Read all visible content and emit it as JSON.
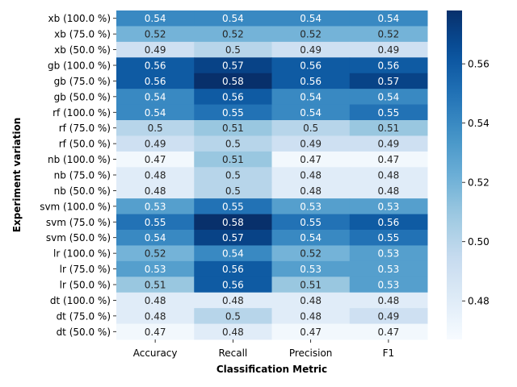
{
  "chart_data": {
    "type": "heatmap",
    "xlabel": "Classification Metric",
    "ylabel": "Experiment variation",
    "columns": [
      "Accuracy",
      "Recall",
      "Precision",
      "F1"
    ],
    "rows": [
      "xb (100.0 %)",
      "xb (75.0 %)",
      "xb (50.0 %)",
      "gb (100.0 %)",
      "gb (75.0 %)",
      "gb (50.0 %)",
      "rf (100.0 %)",
      "rf (75.0 %)",
      "rf (50.0 %)",
      "nb (100.0 %)",
      "nb (75.0 %)",
      "nb (50.0 %)",
      "svm (100.0 %)",
      "svm (75.0 %)",
      "svm (50.0 %)",
      "lr (100.0 %)",
      "lr (75.0 %)",
      "lr (50.0 %)",
      "dt (100.0 %)",
      "dt (75.0 %)",
      "dt (50.0 %)"
    ],
    "values": [
      [
        0.54,
        0.54,
        0.54,
        0.54
      ],
      [
        0.52,
        0.52,
        0.52,
        0.52
      ],
      [
        0.49,
        0.5,
        0.49,
        0.49
      ],
      [
        0.56,
        0.57,
        0.56,
        0.56
      ],
      [
        0.56,
        0.58,
        0.56,
        0.57
      ],
      [
        0.54,
        0.56,
        0.54,
        0.54
      ],
      [
        0.54,
        0.55,
        0.54,
        0.55
      ],
      [
        0.5,
        0.51,
        0.5,
        0.51
      ],
      [
        0.49,
        0.5,
        0.49,
        0.49
      ],
      [
        0.47,
        0.51,
        0.47,
        0.47
      ],
      [
        0.48,
        0.5,
        0.48,
        0.48
      ],
      [
        0.48,
        0.5,
        0.48,
        0.48
      ],
      [
        0.53,
        0.55,
        0.53,
        0.53
      ],
      [
        0.55,
        0.58,
        0.55,
        0.56
      ],
      [
        0.54,
        0.57,
        0.54,
        0.55
      ],
      [
        0.52,
        0.54,
        0.52,
        0.53
      ],
      [
        0.53,
        0.56,
        0.53,
        0.53
      ],
      [
        0.51,
        0.56,
        0.51,
        0.53
      ],
      [
        0.48,
        0.48,
        0.48,
        0.48
      ],
      [
        0.48,
        0.5,
        0.48,
        0.49
      ],
      [
        0.47,
        0.48,
        0.47,
        0.47
      ]
    ],
    "colorbar": {
      "colormap": "Blues",
      "range": [
        0.467,
        0.578
      ],
      "ticks": [
        0.48,
        0.5,
        0.52,
        0.54,
        0.56
      ],
      "tick_labels": [
        "0.48",
        "0.50",
        "0.52",
        "0.54",
        "0.56"
      ],
      "placement": "right"
    }
  }
}
